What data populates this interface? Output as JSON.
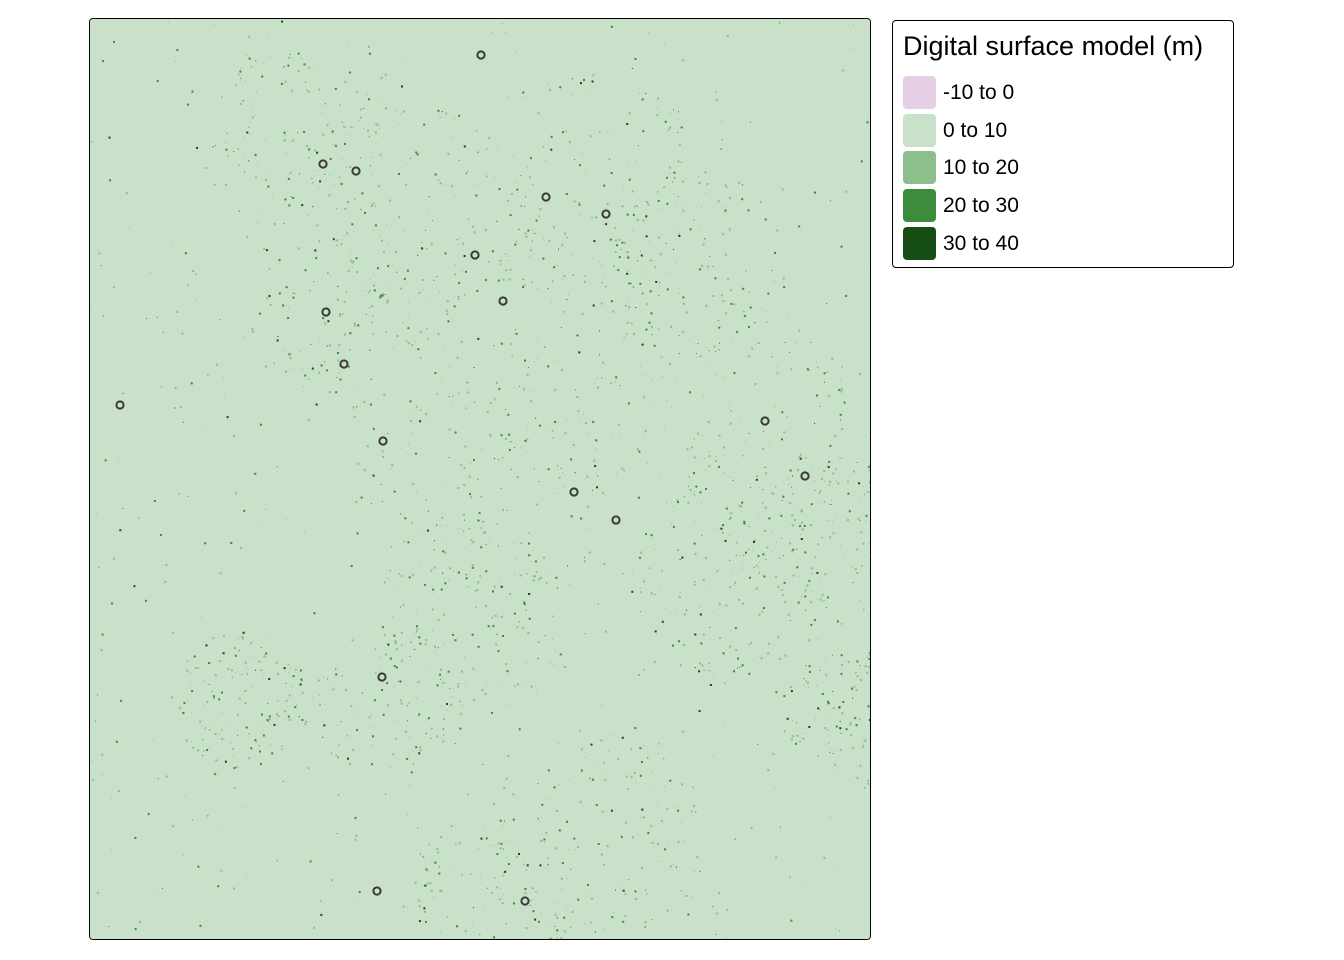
{
  "legend": {
    "title": "Digital surface model (m)",
    "items": [
      {
        "label": "-10 to 0",
        "color": "#e6cfe6"
      },
      {
        "label": "0 to 10",
        "color": "#c9e0c9"
      },
      {
        "label": "10 to 20",
        "color": "#8cbf8c"
      },
      {
        "label": "20 to 30",
        "color": "#3d8c3d"
      },
      {
        "label": "30 to 40",
        "color": "#154d15"
      }
    ]
  },
  "map": {
    "background_color": "#c9e0c9",
    "point_marker": "hollow-circle",
    "point_count": 20
  }
}
